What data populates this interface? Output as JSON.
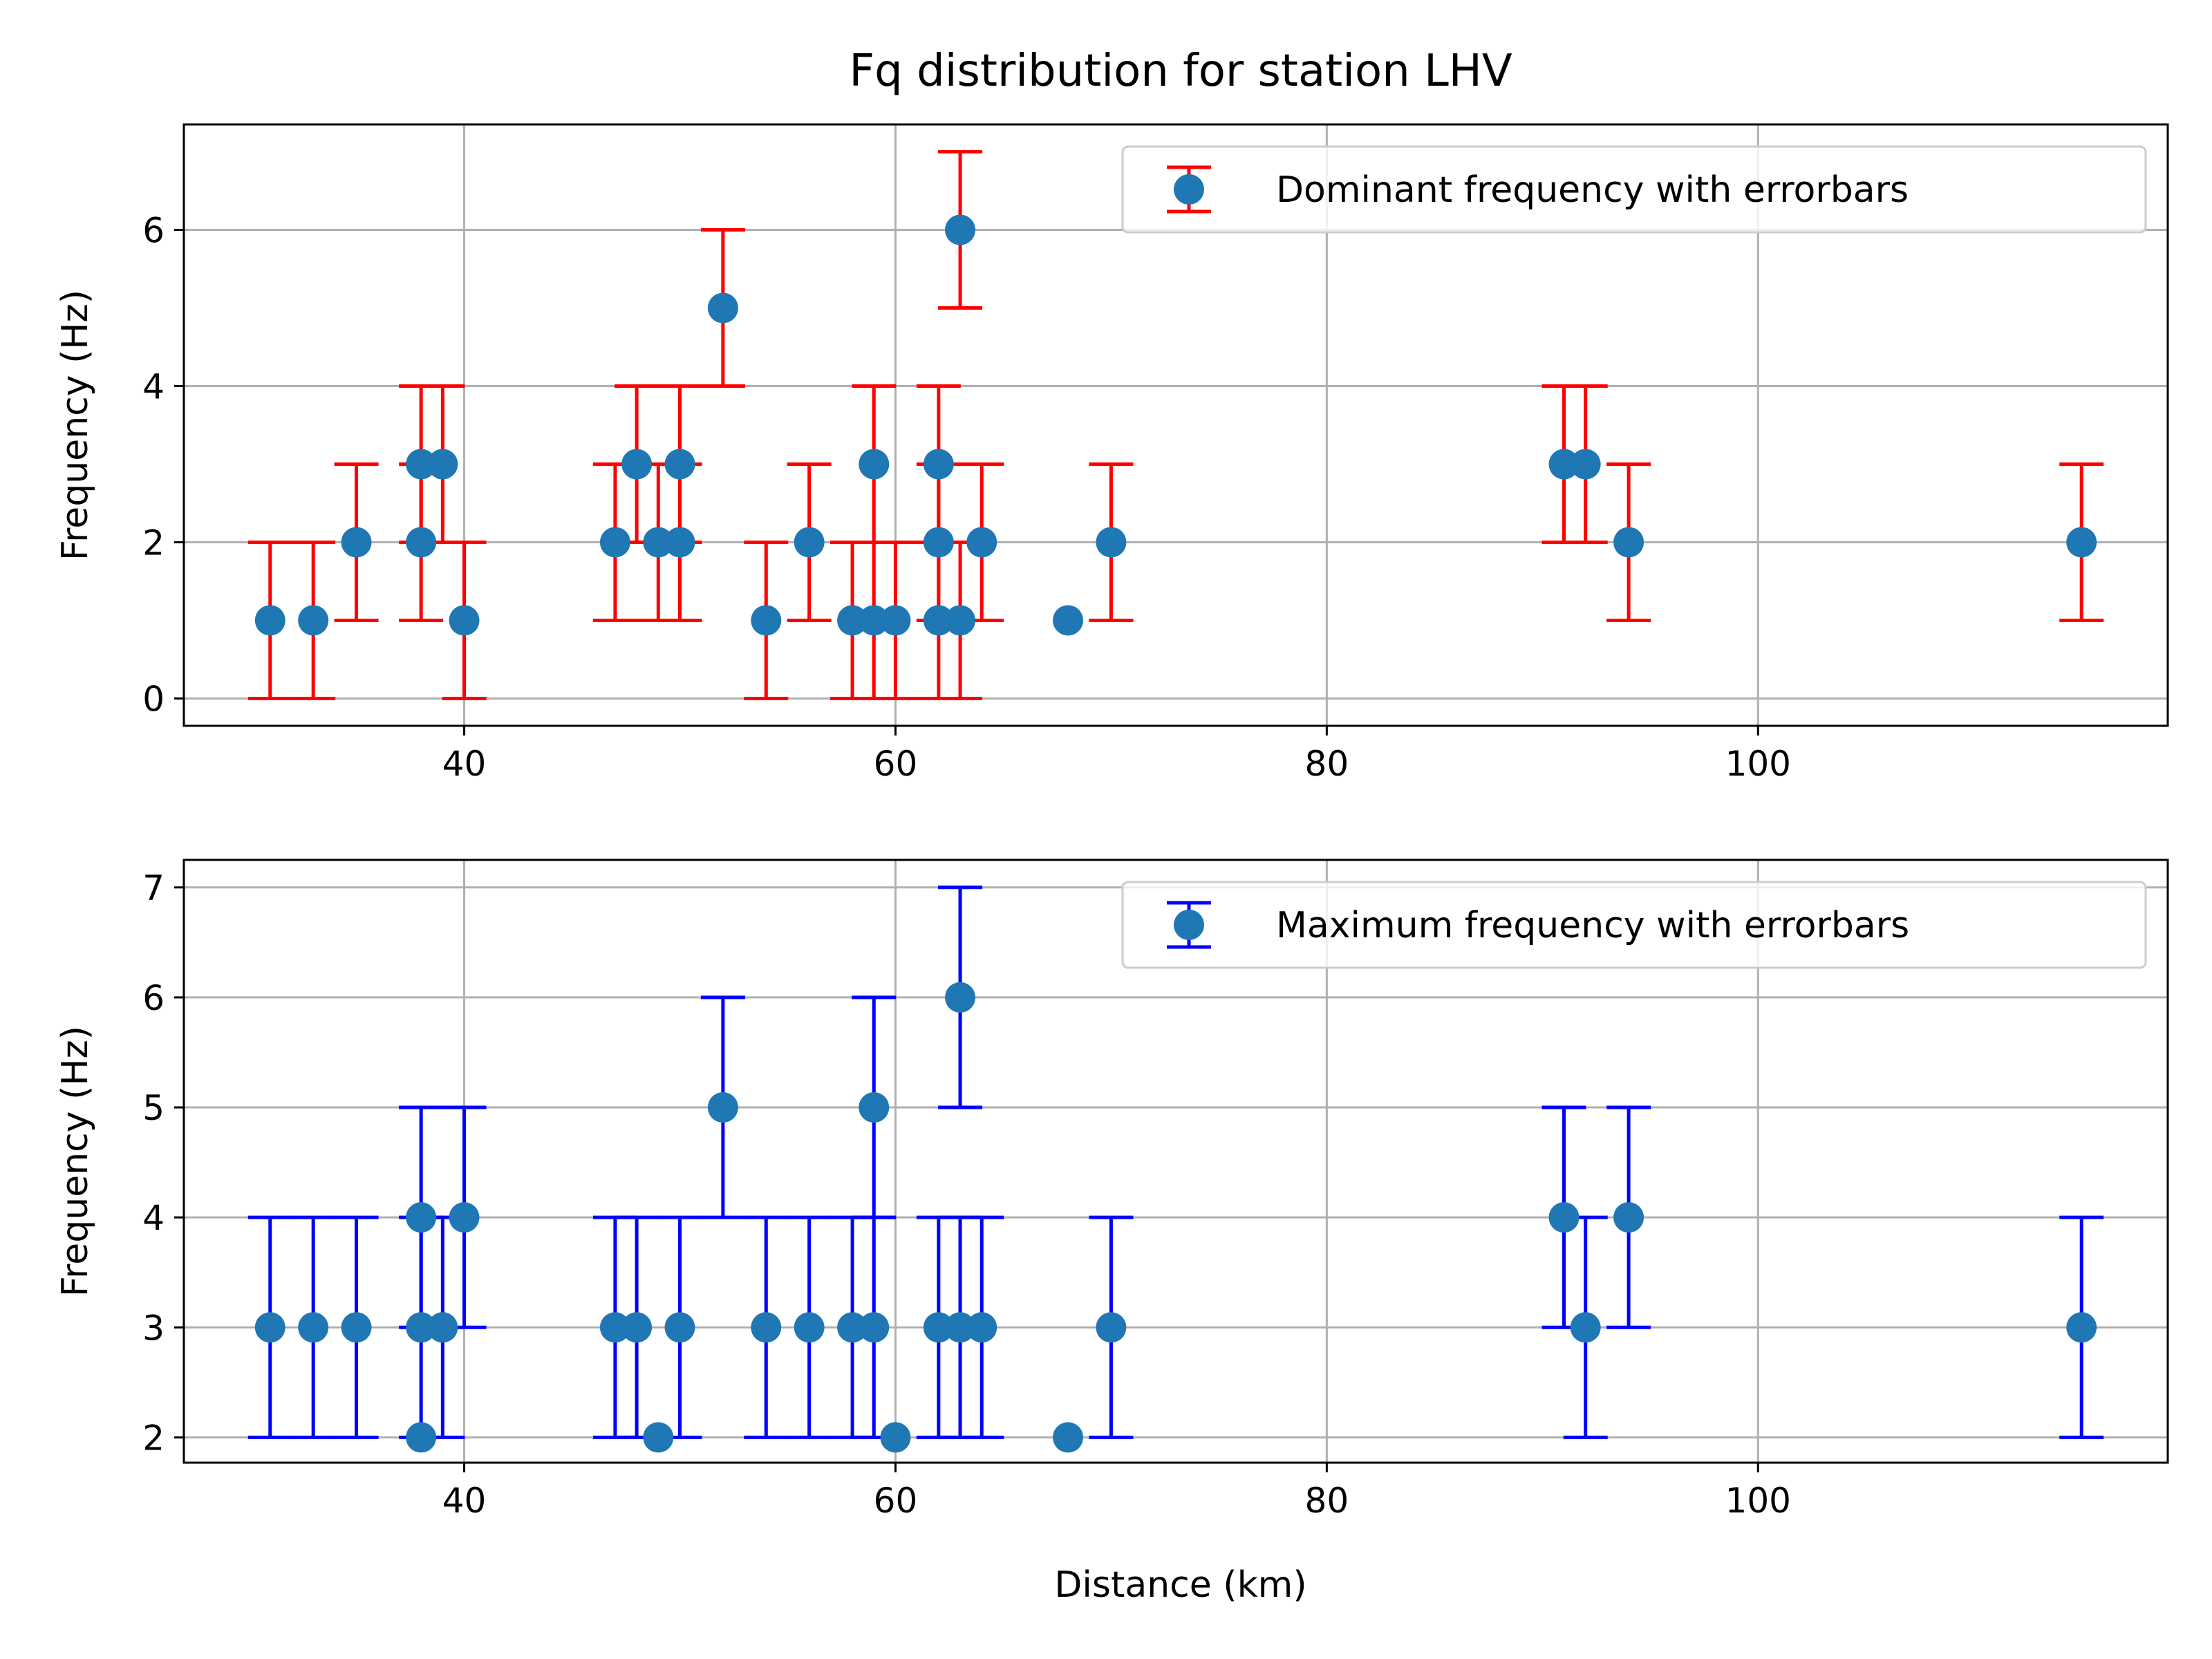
{
  "chart_data": [
    {
      "type": "scatter",
      "title": "Fq distribution for station LHV",
      "xlabel": "",
      "ylabel": "Frequency (Hz)",
      "xlim": [
        27,
        119
      ],
      "ylim": [
        -0.35,
        7.35
      ],
      "xticks": [
        40,
        60,
        80,
        100
      ],
      "yticks": [
        0,
        2,
        4,
        6
      ],
      "grid": true,
      "legend": "top-right",
      "series": [
        {
          "name": "Dominant frequency with errorbars",
          "marker_color": "#1f77b4",
          "errorbar_color": "#ff0000",
          "error": 1,
          "x": [
            31,
            33,
            35,
            38,
            38,
            39,
            40,
            47,
            48,
            49,
            50,
            50,
            52,
            54,
            56,
            58,
            59,
            59,
            60,
            62,
            62,
            62,
            63,
            63,
            64,
            68,
            70,
            91,
            92,
            94,
            115
          ],
          "y": [
            1,
            1,
            2,
            3,
            2,
            3,
            1,
            2,
            3,
            2,
            3,
            2,
            5,
            1,
            2,
            1,
            3,
            1,
            1,
            3,
            2,
            1,
            6,
            1,
            2,
            1,
            2,
            3,
            3,
            2,
            2
          ],
          "has_error": [
            true,
            true,
            true,
            true,
            true,
            true,
            true,
            true,
            true,
            true,
            true,
            true,
            true,
            true,
            true,
            true,
            true,
            true,
            true,
            true,
            true,
            true,
            true,
            true,
            true,
            false,
            true,
            true,
            true,
            true,
            true
          ]
        }
      ]
    },
    {
      "type": "scatter",
      "title": "",
      "xlabel": "Distance (km)",
      "ylabel": "Frequency (Hz)",
      "xlim": [
        27,
        119
      ],
      "ylim": [
        1.77,
        7.25
      ],
      "xticks": [
        40,
        60,
        80,
        100
      ],
      "yticks": [
        2,
        3,
        4,
        5,
        6,
        7
      ],
      "grid": true,
      "legend": "top-right",
      "series": [
        {
          "name": "Maximum frequency with errorbars",
          "marker_color": "#1f77b4",
          "errorbar_color": "#0000ff",
          "error": 1,
          "x": [
            31,
            33,
            35,
            38,
            38,
            38,
            39,
            40,
            47,
            48,
            49,
            50,
            52,
            54,
            56,
            58,
            59,
            59,
            60,
            62,
            63,
            63,
            64,
            68,
            70,
            91,
            92,
            94,
            115
          ],
          "y": [
            3,
            3,
            3,
            4,
            3,
            2,
            3,
            4,
            3,
            3,
            2,
            3,
            5,
            3,
            3,
            3,
            5,
            3,
            2,
            3,
            6,
            3,
            3,
            2,
            3,
            4,
            3,
            4,
            3
          ],
          "has_error": [
            true,
            true,
            true,
            true,
            true,
            false,
            true,
            true,
            true,
            true,
            false,
            true,
            true,
            true,
            true,
            true,
            true,
            true,
            false,
            true,
            true,
            true,
            true,
            false,
            true,
            true,
            true,
            true,
            true
          ]
        }
      ]
    }
  ]
}
